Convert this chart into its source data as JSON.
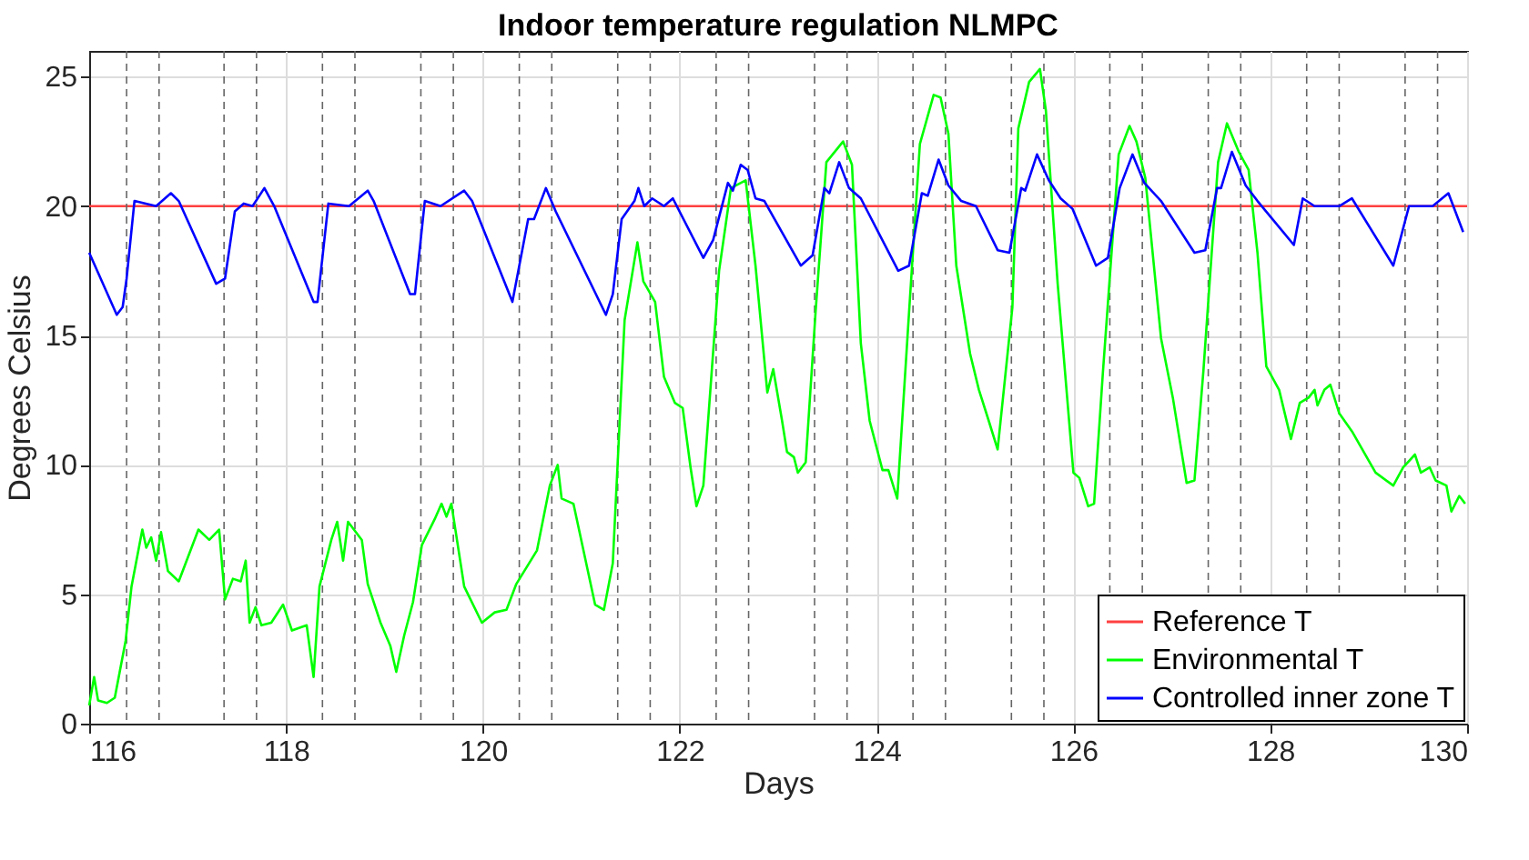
{
  "chart_data": {
    "type": "line",
    "title": "Indoor temperature regulation NLMPC",
    "xlabel": "Days",
    "ylabel": "Degrees Celsius",
    "xlim": [
      116,
      130
    ],
    "xticks": [
      116,
      118,
      120,
      122,
      124,
      126,
      128,
      130
    ],
    "ylim": [
      0,
      26
    ],
    "yticks": [
      0,
      5,
      10,
      15,
      20,
      25
    ],
    "grid": true,
    "legend": "bottom right",
    "line_style": "solid",
    "marker": "none",
    "series": [
      {
        "name": "Reference T",
        "color": "#ff4040",
        "x": [
          116,
          130
        ],
        "values": [
          20,
          20
        ]
      },
      {
        "name": "Environmental T",
        "color": "#00ff00",
        "x": [
          116.0,
          116.05,
          116.09,
          116.18,
          116.26,
          116.37,
          116.43,
          116.54,
          116.58,
          116.63,
          116.68,
          116.73,
          116.8,
          116.91,
          117.11,
          117.22,
          117.32,
          117.38,
          117.46,
          117.54,
          117.59,
          117.63,
          117.69,
          117.75,
          117.85,
          117.97,
          118.06,
          118.21,
          118.28,
          118.34,
          118.46,
          118.52,
          118.58,
          118.63,
          118.77,
          118.83,
          118.96,
          119.06,
          119.12,
          119.2,
          119.29,
          119.38,
          119.51,
          119.58,
          119.63,
          119.68,
          119.81,
          119.99,
          120.12,
          120.24,
          120.34,
          120.55,
          120.68,
          120.76,
          120.8,
          120.92,
          121.14,
          121.23,
          121.32,
          121.44,
          121.57,
          121.63,
          121.75,
          121.84,
          121.95,
          122.03,
          122.11,
          122.17,
          122.24,
          122.4,
          122.52,
          122.67,
          122.77,
          122.89,
          122.95,
          123.04,
          123.09,
          123.16,
          123.2,
          123.28,
          123.38,
          123.49,
          123.66,
          123.75,
          123.84,
          123.93,
          124.06,
          124.12,
          124.21,
          124.33,
          124.44,
          124.58,
          124.65,
          124.73,
          124.81,
          124.95,
          125.04,
          125.14,
          125.23,
          125.38,
          125.44,
          125.55,
          125.66,
          125.72,
          125.84,
          126.0,
          126.06,
          126.15,
          126.21,
          126.3,
          126.46,
          126.57,
          126.64,
          126.73,
          126.89,
          127.01,
          127.15,
          127.23,
          127.32,
          127.47,
          127.56,
          127.68,
          127.78,
          127.87,
          127.96,
          128.09,
          128.21,
          128.3,
          128.39,
          128.45,
          128.48,
          128.55,
          128.61,
          128.7,
          128.83,
          129.07,
          129.25,
          129.35,
          129.47,
          129.53,
          129.62,
          129.68,
          129.79,
          129.84,
          129.92,
          129.98
        ],
        "values": [
          0.7,
          1.8,
          0.9,
          0.8,
          1.0,
          3.2,
          5.3,
          7.5,
          6.8,
          7.2,
          6.3,
          7.4,
          5.9,
          5.5,
          7.5,
          7.1,
          7.5,
          4.8,
          5.6,
          5.5,
          6.3,
          3.9,
          4.5,
          3.8,
          3.9,
          4.6,
          3.6,
          3.8,
          1.8,
          5.3,
          7.1,
          7.8,
          6.3,
          7.8,
          7.1,
          5.4,
          3.9,
          3.0,
          2.0,
          3.4,
          4.7,
          6.9,
          7.9,
          8.5,
          8.0,
          8.5,
          5.3,
          3.9,
          4.3,
          4.4,
          5.4,
          6.7,
          9.2,
          10.0,
          8.7,
          8.5,
          4.6,
          4.4,
          6.2,
          15.6,
          18.6,
          17.1,
          16.3,
          13.4,
          12.4,
          12.2,
          9.9,
          8.4,
          9.2,
          17.5,
          20.7,
          21.0,
          17.7,
          12.8,
          13.7,
          11.7,
          10.5,
          10.3,
          9.7,
          10.1,
          15.9,
          21.7,
          22.5,
          21.6,
          14.7,
          11.7,
          9.8,
          9.8,
          8.7,
          15.9,
          22.4,
          24.3,
          24.2,
          22.8,
          17.7,
          14.3,
          12.9,
          11.7,
          10.6,
          16.1,
          23.0,
          24.8,
          25.3,
          23.7,
          17.0,
          9.7,
          9.5,
          8.4,
          8.5,
          13.6,
          22.0,
          23.1,
          22.5,
          21.1,
          14.9,
          12.6,
          9.3,
          9.4,
          13.6,
          21.7,
          23.2,
          22.1,
          21.4,
          18.2,
          13.8,
          12.9,
          11.0,
          12.4,
          12.6,
          12.9,
          12.3,
          12.9,
          13.1,
          12.0,
          11.3,
          9.7,
          9.2,
          9.9,
          10.4,
          9.7,
          9.9,
          9.4,
          9.2,
          8.2,
          8.8,
          8.5
        ]
      },
      {
        "name": "Controlled inner zone T",
        "color": "#0000ff",
        "x": [
          116.0,
          116.28,
          116.34,
          116.38,
          116.46,
          116.68,
          116.83,
          116.91,
          117.29,
          117.38,
          117.48,
          117.57,
          117.66,
          117.78,
          117.88,
          118.28,
          118.32,
          118.43,
          118.64,
          118.83,
          118.89,
          119.26,
          119.31,
          119.41,
          119.57,
          119.81,
          119.89,
          120.3,
          120.46,
          120.52,
          120.64,
          120.74,
          121.25,
          121.32,
          121.41,
          121.54,
          121.58,
          121.64,
          121.72,
          121.84,
          121.93,
          122.24,
          122.34,
          122.49,
          122.54,
          122.62,
          122.69,
          122.77,
          122.86,
          123.23,
          123.35,
          123.47,
          123.52,
          123.62,
          123.72,
          123.84,
          124.22,
          124.33,
          124.46,
          124.52,
          124.63,
          124.73,
          124.86,
          125.01,
          125.23,
          125.35,
          125.47,
          125.51,
          125.63,
          125.75,
          125.87,
          125.99,
          126.23,
          126.35,
          126.47,
          126.6,
          126.72,
          126.89,
          127.23,
          127.34,
          127.46,
          127.5,
          127.61,
          127.75,
          127.87,
          128.24,
          128.33,
          128.45,
          128.7,
          128.83,
          129.25,
          129.41,
          129.65,
          129.81,
          129.96
        ],
        "values": [
          18.2,
          15.8,
          16.1,
          17.2,
          20.2,
          20.0,
          20.5,
          20.2,
          17.0,
          17.2,
          19.8,
          20.1,
          20.0,
          20.7,
          20.0,
          16.3,
          16.3,
          20.1,
          20.0,
          20.6,
          20.2,
          16.6,
          16.6,
          20.2,
          20.0,
          20.6,
          20.2,
          16.3,
          19.5,
          19.5,
          20.7,
          19.8,
          15.8,
          16.6,
          19.5,
          20.2,
          20.7,
          20.0,
          20.3,
          20.0,
          20.3,
          18.0,
          18.7,
          20.9,
          20.6,
          21.6,
          21.4,
          20.3,
          20.2,
          17.7,
          18.1,
          20.7,
          20.5,
          21.7,
          20.7,
          20.3,
          17.5,
          17.7,
          20.5,
          20.4,
          21.8,
          20.8,
          20.2,
          20.0,
          18.3,
          18.2,
          20.7,
          20.6,
          22.0,
          21.0,
          20.3,
          19.9,
          17.7,
          18.0,
          20.7,
          22.0,
          20.9,
          20.2,
          18.2,
          18.3,
          20.7,
          20.7,
          22.1,
          20.8,
          20.2,
          18.5,
          20.3,
          20.0,
          20.0,
          20.3,
          17.7,
          20.0,
          20.0,
          20.5,
          19.0
        ]
      }
    ],
    "ref_lines": [
      {
        "axis": "x",
        "value": 116.38,
        "color": "#666666",
        "line_style": "dashed"
      },
      {
        "axis": "x",
        "value": 116.71,
        "color": "#666666",
        "line_style": "dashed"
      },
      {
        "axis": "x",
        "value": 117.37,
        "color": "#666666",
        "line_style": "dashed"
      },
      {
        "axis": "x",
        "value": 117.7,
        "color": "#666666",
        "line_style": "dashed"
      },
      {
        "axis": "x",
        "value": 118.37,
        "color": "#666666",
        "line_style": "dashed"
      },
      {
        "axis": "x",
        "value": 118.7,
        "color": "#666666",
        "line_style": "dashed"
      },
      {
        "axis": "x",
        "value": 119.37,
        "color": "#666666",
        "line_style": "dashed"
      },
      {
        "axis": "x",
        "value": 119.7,
        "color": "#666666",
        "line_style": "dashed"
      },
      {
        "axis": "x",
        "value": 120.37,
        "color": "#666666",
        "line_style": "dashed"
      },
      {
        "axis": "x",
        "value": 120.7,
        "color": "#666666",
        "line_style": "dashed"
      },
      {
        "axis": "x",
        "value": 121.37,
        "color": "#666666",
        "line_style": "dashed"
      },
      {
        "axis": "x",
        "value": 121.7,
        "color": "#666666",
        "line_style": "dashed"
      },
      {
        "axis": "x",
        "value": 122.37,
        "color": "#666666",
        "line_style": "dashed"
      },
      {
        "axis": "x",
        "value": 122.7,
        "color": "#666666",
        "line_style": "dashed"
      },
      {
        "axis": "x",
        "value": 123.37,
        "color": "#666666",
        "line_style": "dashed"
      },
      {
        "axis": "x",
        "value": 123.7,
        "color": "#666666",
        "line_style": "dashed"
      },
      {
        "axis": "x",
        "value": 124.37,
        "color": "#666666",
        "line_style": "dashed"
      },
      {
        "axis": "x",
        "value": 124.7,
        "color": "#666666",
        "line_style": "dashed"
      },
      {
        "axis": "x",
        "value": 125.37,
        "color": "#666666",
        "line_style": "dashed"
      },
      {
        "axis": "x",
        "value": 125.7,
        "color": "#666666",
        "line_style": "dashed"
      },
      {
        "axis": "x",
        "value": 126.37,
        "color": "#666666",
        "line_style": "dashed"
      },
      {
        "axis": "x",
        "value": 126.7,
        "color": "#666666",
        "line_style": "dashed"
      },
      {
        "axis": "x",
        "value": 127.37,
        "color": "#666666",
        "line_style": "dashed"
      },
      {
        "axis": "x",
        "value": 127.7,
        "color": "#666666",
        "line_style": "dashed"
      },
      {
        "axis": "x",
        "value": 128.37,
        "color": "#666666",
        "line_style": "dashed"
      },
      {
        "axis": "x",
        "value": 128.7,
        "color": "#666666",
        "line_style": "dashed"
      },
      {
        "axis": "x",
        "value": 129.37,
        "color": "#666666",
        "line_style": "dashed"
      },
      {
        "axis": "x",
        "value": 129.7,
        "color": "#666666",
        "line_style": "dashed"
      }
    ]
  }
}
